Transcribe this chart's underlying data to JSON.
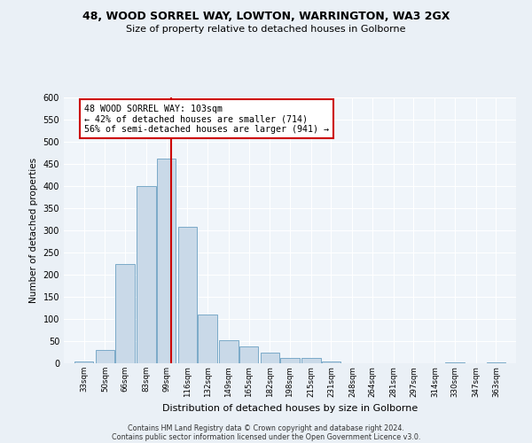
{
  "title1": "48, WOOD SORREL WAY, LOWTON, WARRINGTON, WA3 2GX",
  "title2": "Size of property relative to detached houses in Golborne",
  "xlabel": "Distribution of detached houses by size in Golborne",
  "ylabel": "Number of detached properties",
  "bins": [
    33,
    50,
    66,
    83,
    99,
    116,
    132,
    149,
    165,
    182,
    198,
    215,
    231,
    248,
    264,
    281,
    297,
    314,
    330,
    347,
    363
  ],
  "heights": [
    5,
    30,
    225,
    400,
    462,
    308,
    110,
    52,
    38,
    25,
    12,
    12,
    5,
    1,
    0,
    0,
    0,
    0,
    3,
    0,
    3
  ],
  "bar_color": "#c9d9e8",
  "bar_edge_color": "#7aaac8",
  "reference_line_x": 103,
  "reference_line_color": "#cc0000",
  "annotation_text": "48 WOOD SORREL WAY: 103sqm\n← 42% of detached houses are smaller (714)\n56% of semi-detached houses are larger (941) →",
  "annotation_box_edge_color": "#cc0000",
  "ylim": [
    0,
    600
  ],
  "yticks": [
    0,
    50,
    100,
    150,
    200,
    250,
    300,
    350,
    400,
    450,
    500,
    550,
    600
  ],
  "footer1": "Contains HM Land Registry data © Crown copyright and database right 2024.",
  "footer2": "Contains public sector information licensed under the Open Government Licence v3.0.",
  "bg_color": "#eaf0f6",
  "plot_bg_color": "#f0f5fa"
}
